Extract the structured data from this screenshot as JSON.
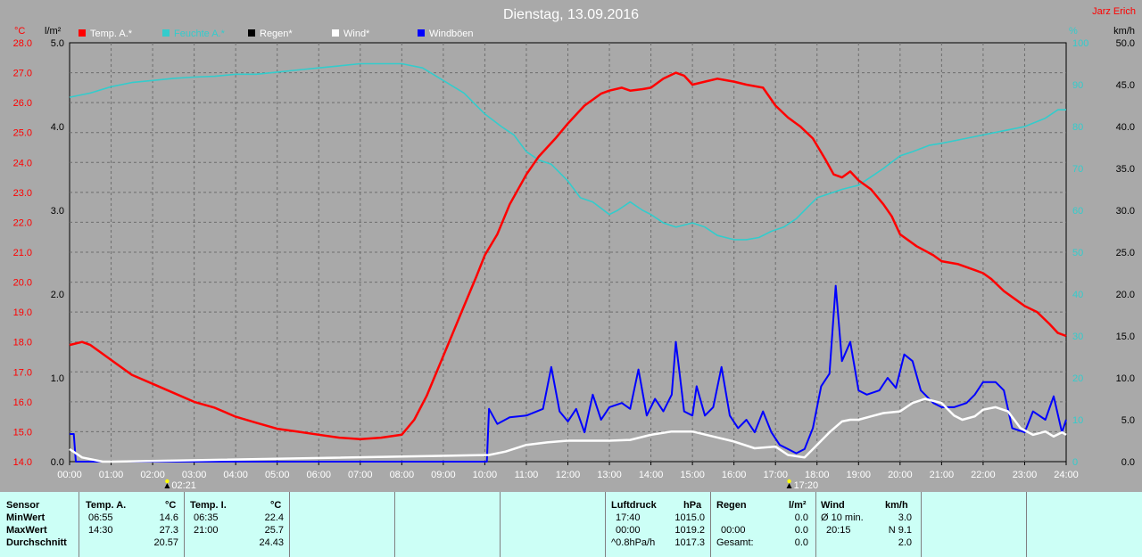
{
  "header": {
    "title": "Dienstag, 13.09.2016",
    "credit": "Jarz Erich"
  },
  "colors": {
    "temp": "#ff0000",
    "feuchte": "#33cccc",
    "regen": "#000000",
    "wind": "#ffffff",
    "windboen": "#0000ff"
  },
  "chart_data": {
    "type": "line",
    "x_unit": "time (hh:mm)",
    "x_ticks": [
      "00:00",
      "01:00",
      "02:00",
      "03:00",
      "04:00",
      "05:00",
      "06:00",
      "07:00",
      "08:00",
      "09:00",
      "10:00",
      "11:00",
      "12:00",
      "13:00",
      "14:00",
      "15:00",
      "16:00",
      "17:00",
      "18:00",
      "19:00",
      "20:00",
      "21:00",
      "22:00",
      "23:00",
      "24:00"
    ],
    "x_range": [
      0,
      24
    ],
    "axes": {
      "temp": {
        "unit": "°C",
        "range": [
          14.0,
          28.0
        ],
        "ticks": [
          "14.0",
          "15.0",
          "16.0",
          "17.0",
          "18.0",
          "19.0",
          "20.0",
          "21.0",
          "22.0",
          "23.0",
          "24.0",
          "25.0",
          "26.0",
          "27.0",
          "28.0"
        ]
      },
      "rain": {
        "unit": "l/m²",
        "range": [
          0,
          5
        ],
        "ticks": [
          "0.0",
          "1.0",
          "2.0",
          "3.0",
          "4.0",
          "5.0"
        ]
      },
      "humidity": {
        "unit": "%",
        "range": [
          0,
          100
        ],
        "ticks": [
          "0",
          "10",
          "20",
          "30",
          "40",
          "50",
          "60",
          "70",
          "80",
          "90",
          "100"
        ]
      },
      "wind": {
        "unit": "km/h",
        "range": [
          0,
          50
        ],
        "ticks": [
          "0.0",
          "5.0",
          "10.0",
          "15.0",
          "20.0",
          "25.0",
          "30.0",
          "35.0",
          "40.0",
          "45.0",
          "50.0"
        ]
      }
    },
    "legend": [
      "Temp. A.*",
      "Feuchte A.*",
      "Regen*",
      "Wind*",
      "Windböen"
    ],
    "markers": [
      {
        "time": 2.35,
        "label": "02:21",
        "kind": "sunrise"
      },
      {
        "time": 17.33,
        "label": "17:20",
        "kind": "sunset"
      }
    ],
    "series": [
      {
        "name": "Temp. A.*",
        "axis": "temp",
        "color": "#ff0000",
        "points": [
          [
            0,
            17.9
          ],
          [
            0.3,
            18.0
          ],
          [
            0.5,
            17.9
          ],
          [
            0.8,
            17.6
          ],
          [
            1.0,
            17.4
          ],
          [
            1.5,
            16.9
          ],
          [
            2.0,
            16.6
          ],
          [
            2.5,
            16.3
          ],
          [
            3.0,
            16.0
          ],
          [
            3.5,
            15.8
          ],
          [
            4.0,
            15.5
          ],
          [
            4.5,
            15.3
          ],
          [
            5.0,
            15.1
          ],
          [
            5.5,
            15.0
          ],
          [
            6.0,
            14.9
          ],
          [
            6.5,
            14.8
          ],
          [
            7.0,
            14.75
          ],
          [
            7.5,
            14.8
          ],
          [
            8.0,
            14.9
          ],
          [
            8.3,
            15.4
          ],
          [
            8.6,
            16.2
          ],
          [
            8.9,
            17.2
          ],
          [
            9.2,
            18.2
          ],
          [
            9.5,
            19.2
          ],
          [
            9.8,
            20.2
          ],
          [
            10.0,
            20.9
          ],
          [
            10.3,
            21.6
          ],
          [
            10.6,
            22.6
          ],
          [
            11.0,
            23.6
          ],
          [
            11.3,
            24.2
          ],
          [
            11.7,
            24.8
          ],
          [
            12.0,
            25.3
          ],
          [
            12.4,
            25.9
          ],
          [
            12.8,
            26.3
          ],
          [
            13.0,
            26.4
          ],
          [
            13.3,
            26.5
          ],
          [
            13.5,
            26.4
          ],
          [
            13.8,
            26.45
          ],
          [
            14.0,
            26.5
          ],
          [
            14.3,
            26.8
          ],
          [
            14.6,
            27.0
          ],
          [
            14.8,
            26.9
          ],
          [
            15.0,
            26.6
          ],
          [
            15.3,
            26.7
          ],
          [
            15.6,
            26.8
          ],
          [
            15.8,
            26.75
          ],
          [
            16.0,
            26.7
          ],
          [
            16.3,
            26.6
          ],
          [
            16.7,
            26.5
          ],
          [
            17.0,
            25.9
          ],
          [
            17.3,
            25.5
          ],
          [
            17.6,
            25.2
          ],
          [
            17.9,
            24.8
          ],
          [
            18.2,
            24.1
          ],
          [
            18.4,
            23.6
          ],
          [
            18.6,
            23.5
          ],
          [
            18.8,
            23.7
          ],
          [
            19.0,
            23.4
          ],
          [
            19.3,
            23.1
          ],
          [
            19.6,
            22.6
          ],
          [
            19.8,
            22.2
          ],
          [
            20.0,
            21.6
          ],
          [
            20.4,
            21.2
          ],
          [
            20.8,
            20.9
          ],
          [
            21.0,
            20.7
          ],
          [
            21.4,
            20.6
          ],
          [
            21.8,
            20.4
          ],
          [
            22.0,
            20.3
          ],
          [
            22.2,
            20.1
          ],
          [
            22.5,
            19.7
          ],
          [
            22.8,
            19.4
          ],
          [
            23.0,
            19.2
          ],
          [
            23.3,
            19.0
          ],
          [
            23.6,
            18.6
          ],
          [
            23.8,
            18.3
          ],
          [
            24.0,
            18.2
          ]
        ]
      },
      {
        "name": "Feuchte A.*",
        "axis": "humidity",
        "color": "#33cccc",
        "points": [
          [
            0,
            87
          ],
          [
            0.5,
            88
          ],
          [
            1.0,
            89.5
          ],
          [
            1.5,
            90.5
          ],
          [
            2.0,
            91
          ],
          [
            2.5,
            91.5
          ],
          [
            3.0,
            91.8
          ],
          [
            3.5,
            92
          ],
          [
            4.0,
            92.5
          ],
          [
            4.5,
            92.5
          ],
          [
            5.0,
            93
          ],
          [
            5.5,
            93.5
          ],
          [
            6.0,
            94
          ],
          [
            6.5,
            94.5
          ],
          [
            7.0,
            95
          ],
          [
            7.5,
            95
          ],
          [
            8.0,
            95
          ],
          [
            8.5,
            94
          ],
          [
            9.0,
            91
          ],
          [
            9.5,
            88
          ],
          [
            10.0,
            83
          ],
          [
            10.4,
            80
          ],
          [
            10.7,
            78
          ],
          [
            11.0,
            74
          ],
          [
            11.3,
            72
          ],
          [
            11.6,
            71
          ],
          [
            12.0,
            67
          ],
          [
            12.3,
            63
          ],
          [
            12.6,
            62
          ],
          [
            13.0,
            59
          ],
          [
            13.2,
            60
          ],
          [
            13.5,
            62
          ],
          [
            13.8,
            60
          ],
          [
            14.0,
            59
          ],
          [
            14.3,
            57
          ],
          [
            14.6,
            56
          ],
          [
            14.8,
            56.5
          ],
          [
            15.0,
            57
          ],
          [
            15.3,
            56
          ],
          [
            15.6,
            54
          ],
          [
            16.0,
            53
          ],
          [
            16.3,
            53
          ],
          [
            16.6,
            53.5
          ],
          [
            16.9,
            55
          ],
          [
            17.2,
            56
          ],
          [
            17.5,
            58
          ],
          [
            17.8,
            61
          ],
          [
            18.0,
            63
          ],
          [
            18.3,
            64
          ],
          [
            18.6,
            65
          ],
          [
            19.0,
            66
          ],
          [
            19.3,
            68
          ],
          [
            19.6,
            70
          ],
          [
            20.0,
            73
          ],
          [
            20.3,
            74
          ],
          [
            20.7,
            75.5
          ],
          [
            21.0,
            76
          ],
          [
            21.5,
            77
          ],
          [
            22.0,
            78
          ],
          [
            22.5,
            79
          ],
          [
            23.0,
            80
          ],
          [
            23.5,
            82
          ],
          [
            23.8,
            84
          ],
          [
            24.0,
            84
          ]
        ]
      },
      {
        "name": "Wind*",
        "axis": "wind",
        "color": "#ffffff",
        "points": [
          [
            0,
            1.5
          ],
          [
            0.3,
            0.5
          ],
          [
            0.8,
            0
          ],
          [
            1.0,
            0
          ],
          [
            10.1,
            0.8
          ],
          [
            10.5,
            1.2
          ],
          [
            11.0,
            2.0
          ],
          [
            11.5,
            2.3
          ],
          [
            12.0,
            2.5
          ],
          [
            12.5,
            2.5
          ],
          [
            13.0,
            2.5
          ],
          [
            13.5,
            2.6
          ],
          [
            14.0,
            3.2
          ],
          [
            14.5,
            3.6
          ],
          [
            15.0,
            3.6
          ],
          [
            15.5,
            3.0
          ],
          [
            16.0,
            2.4
          ],
          [
            16.5,
            1.6
          ],
          [
            17.0,
            1.8
          ],
          [
            17.3,
            0.8
          ],
          [
            17.7,
            0.5
          ],
          [
            18.0,
            2.0
          ],
          [
            18.3,
            3.5
          ],
          [
            18.6,
            4.8
          ],
          [
            18.8,
            5.0
          ],
          [
            19.0,
            5.0
          ],
          [
            19.3,
            5.4
          ],
          [
            19.6,
            5.8
          ],
          [
            20.0,
            6.0
          ],
          [
            20.3,
            7.0
          ],
          [
            20.6,
            7.5
          ],
          [
            21.0,
            7.0
          ],
          [
            21.3,
            5.5
          ],
          [
            21.5,
            5.0
          ],
          [
            21.8,
            5.4
          ],
          [
            22.0,
            6.2
          ],
          [
            22.3,
            6.5
          ],
          [
            22.6,
            6.0
          ],
          [
            22.9,
            4.0
          ],
          [
            23.2,
            3.2
          ],
          [
            23.5,
            3.6
          ],
          [
            23.7,
            3.0
          ],
          [
            23.9,
            3.5
          ],
          [
            24.0,
            3.2
          ]
        ]
      },
      {
        "name": "Windböen",
        "axis": "wind",
        "color": "#0000ff",
        "points": [
          [
            0,
            3.3
          ],
          [
            0.1,
            3.3
          ],
          [
            0.15,
            0
          ],
          [
            10.05,
            0
          ],
          [
            10.1,
            6.3
          ],
          [
            10.3,
            4.5
          ],
          [
            10.6,
            5.3
          ],
          [
            11.0,
            5.5
          ],
          [
            11.4,
            6.3
          ],
          [
            11.6,
            11.3
          ],
          [
            11.8,
            6.0
          ],
          [
            12.0,
            4.8
          ],
          [
            12.2,
            6.3
          ],
          [
            12.4,
            3.5
          ],
          [
            12.6,
            8.0
          ],
          [
            12.8,
            5.0
          ],
          [
            13.0,
            6.5
          ],
          [
            13.3,
            7.0
          ],
          [
            13.5,
            6.3
          ],
          [
            13.7,
            11.0
          ],
          [
            13.9,
            5.5
          ],
          [
            14.1,
            7.5
          ],
          [
            14.3,
            6.0
          ],
          [
            14.5,
            8.0
          ],
          [
            14.6,
            14.3
          ],
          [
            14.8,
            6.0
          ],
          [
            15.0,
            5.5
          ],
          [
            15.1,
            9.0
          ],
          [
            15.3,
            5.5
          ],
          [
            15.5,
            6.5
          ],
          [
            15.7,
            11.3
          ],
          [
            15.9,
            5.5
          ],
          [
            16.1,
            4.0
          ],
          [
            16.3,
            5.0
          ],
          [
            16.5,
            3.5
          ],
          [
            16.7,
            6.0
          ],
          [
            16.9,
            3.5
          ],
          [
            17.1,
            2.0
          ],
          [
            17.3,
            1.5
          ],
          [
            17.5,
            1.0
          ],
          [
            17.7,
            1.5
          ],
          [
            17.9,
            4.0
          ],
          [
            18.1,
            9.0
          ],
          [
            18.3,
            10.5
          ],
          [
            18.45,
            21.0
          ],
          [
            18.6,
            12.0
          ],
          [
            18.8,
            14.3
          ],
          [
            19.0,
            8.5
          ],
          [
            19.2,
            8.0
          ],
          [
            19.5,
            8.5
          ],
          [
            19.7,
            10.0
          ],
          [
            19.9,
            8.8
          ],
          [
            20.1,
            12.8
          ],
          [
            20.3,
            12.0
          ],
          [
            20.5,
            8.5
          ],
          [
            20.8,
            7.0
          ],
          [
            21.0,
            6.5
          ],
          [
            21.3,
            6.5
          ],
          [
            21.6,
            7.0
          ],
          [
            21.8,
            8.0
          ],
          [
            22.0,
            9.5
          ],
          [
            22.3,
            9.5
          ],
          [
            22.5,
            8.5
          ],
          [
            22.7,
            4.0
          ],
          [
            23.0,
            3.5
          ],
          [
            23.2,
            6.0
          ],
          [
            23.5,
            5.0
          ],
          [
            23.7,
            7.8
          ],
          [
            23.9,
            3.5
          ],
          [
            24.0,
            5.0
          ]
        ]
      }
    ]
  },
  "stats": {
    "sensor": {
      "header": "Sensor",
      "rows": [
        "MinWert",
        "MaxWert",
        "Durchschnitt"
      ]
    },
    "temp_a": {
      "header": "Temp. A.",
      "unit": "°C",
      "min_time": "06:55",
      "min": "14.6",
      "max_time": "14:30",
      "max": "27.3",
      "avg": "20.57"
    },
    "temp_i": {
      "header": "Temp. I.",
      "unit": "°C",
      "min_time": "06:35",
      "min": "22.4",
      "max_time": "21:00",
      "max": "25.7",
      "avg": "24.43"
    },
    "luftdruck": {
      "header": "Luftdruck",
      "unit": "hPa",
      "r1_label": "17:40",
      "r1": "1015.0",
      "r2_label": "00:00",
      "r2": "1019.2",
      "r3_label": "^0.8hPa/h",
      "r3": "1017.3"
    },
    "regen": {
      "header": "Regen",
      "unit": "l/m²",
      "r1": "0.0",
      "r2_label": "00:00",
      "r2": "0.0",
      "r3_label": "Gesamt:",
      "r3": "0.0"
    },
    "wind": {
      "header": "Wind",
      "unit": "km/h",
      "r1_label": "Ø 10 min.",
      "r1": "3.0",
      "r2_label": "20:15",
      "r2": "N 9.1",
      "r3": "2.0"
    }
  }
}
